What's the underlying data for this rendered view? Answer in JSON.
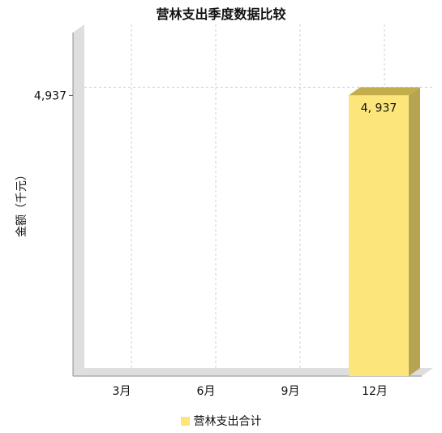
{
  "chart_data": {
    "type": "bar",
    "title": "营林支出季度数据比较",
    "xlabel": "",
    "ylabel": "金额（千元）",
    "categories": [
      "3月",
      "6月",
      "9月",
      "12月"
    ],
    "series": [
      {
        "name": "营林支出合计",
        "values": [
          0,
          0,
          0,
          4937
        ],
        "data_labels": [
          "",
          "",
          "",
          "4, 937"
        ]
      }
    ],
    "y_ticks": [
      4937
    ],
    "y_tick_labels": [
      "4,937"
    ],
    "ylim": [
      0,
      5900
    ],
    "grid": true,
    "legend_position": "bottom",
    "colors": {
      "bar_front": "#fce57a",
      "bar_top": "#c4ae4c",
      "bar_side": "#b7a453",
      "wall": "#dedede",
      "grid": "#cfcfcf"
    }
  }
}
